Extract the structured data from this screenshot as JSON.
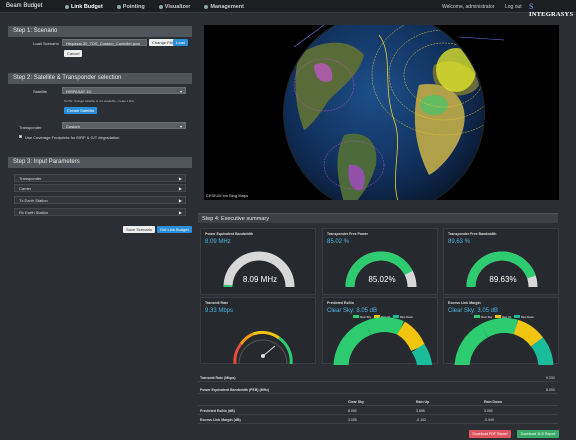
{
  "topbar": {
    "brand": "Beam Budget",
    "nav": [
      {
        "label": "Link Budget"
      },
      {
        "label": "Pointing"
      },
      {
        "label": "Visualizer"
      },
      {
        "label": "Management"
      }
    ],
    "welcome": "Welcome, administrator",
    "logout": "Log out",
    "logo": "Integrasys"
  },
  "step1": {
    "title": "Step 1: Scenario",
    "load_label": "Load Scenario",
    "file_value": "Hispasat-30_TDS_Custom_Contoller.json",
    "change_btn": "Change File",
    "load_btn": "Load",
    "cancel_btn": "Cancel"
  },
  "step2": {
    "title": "Step 2: Satellite & Transponder selection",
    "satellite_label": "Satellite",
    "satellite_value": "HISPASAT 1D",
    "note": "NOTE: If target satellite is not available, create it first.",
    "create_btn": "Create Satellite",
    "transponder_label": "Transponder",
    "transponder_value": "Custom",
    "checkbox_label": "Use Coverage Footprints for EIRP & G/T degradation"
  },
  "step3": {
    "title": "Step 3: Input Parameters",
    "sections": [
      "Transponder",
      "Carrier",
      "Tx Earth Station",
      "Rx Earth Station"
    ],
    "save_btn": "Save Scenario",
    "get_btn": "Get Link Budget"
  },
  "map": {
    "credit": "CESIUM ion  Bing Maps"
  },
  "exec": {
    "title": "Step 4: Executive summary",
    "cards": [
      {
        "title": "Power Equivalent Bandwidth",
        "value": "8.09 MHz",
        "center": "8.09 MHz"
      },
      {
        "title": "Transponder Free Power",
        "value": "85.02 %",
        "center": "85.02%"
      },
      {
        "title": "Transponder Free Bandwidth",
        "value": "89.63 %",
        "center": "89.63%"
      },
      {
        "title": "Transmit Rate",
        "value": "9.33 Mbps",
        "center": ""
      },
      {
        "title": "Predicted Es/No",
        "value": "Clear Sky: 8.05 dB",
        "center": ""
      },
      {
        "title": "Excess Link Margin",
        "value": "Clear Sky: 3.05 dB",
        "center": ""
      }
    ],
    "legend": [
      "Clear Sky",
      "Rain Up",
      "Rain Down"
    ]
  },
  "table": {
    "rows": [
      {
        "label": "Transmit Rate (Mbps)",
        "c1": "",
        "c2": "",
        "c3": "9.333"
      },
      {
        "label": "Power Equivalent Bandwidth (PEB) (MHz)",
        "c1": "",
        "c2": "",
        "c3": "8.093"
      },
      {
        "label": "",
        "c1": "Clear Sky",
        "c2": "Rain Up",
        "c3": "Rain Down"
      },
      {
        "label": "Predicted Es/No (dB)",
        "c1": "8.050",
        "c2": "3.895",
        "c3": "3.050"
      },
      {
        "label": "Excess Link Margin (dB)",
        "c1": "3.055",
        "c2": "-0.102",
        "c3": "-0.949"
      }
    ]
  },
  "buttons": {
    "pdf": "Download PDF Report",
    "xls": "Download XLS Report"
  },
  "colors": {
    "accent_blue": "#4fb8e8",
    "gauge_gray": "#d8d8d8",
    "gauge_green": "#2ecc71",
    "clear_sky": "#2ecc71",
    "rain_up": "#f1c40f",
    "rain_down": "#1abc9c"
  },
  "gauges": {
    "peb_fraction": 0.97,
    "power_free_fraction": 0.8502,
    "bw_free_fraction": 0.8963
  }
}
